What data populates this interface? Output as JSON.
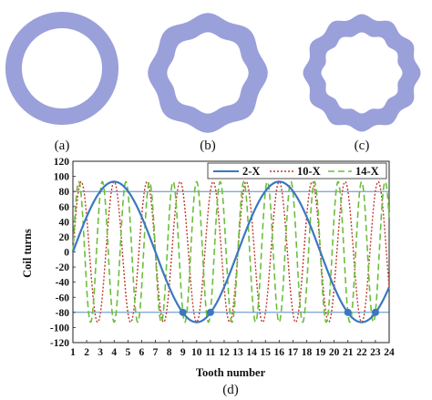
{
  "panels": {
    "ring_color": "#9aa0da",
    "labels": [
      "(a)",
      "(b)",
      "(c)"
    ],
    "lobes": [
      0,
      8,
      12
    ]
  },
  "chart_label": "(d)",
  "chart_data": {
    "type": "line",
    "xlabel": "Tooth number",
    "ylabel": "Coil turns",
    "xlim": [
      1,
      24
    ],
    "ylim": [
      -120,
      120
    ],
    "x_ticks": [
      1,
      2,
      3,
      4,
      5,
      6,
      7,
      8,
      9,
      10,
      11,
      12,
      13,
      14,
      15,
      16,
      17,
      18,
      19,
      20,
      21,
      22,
      23,
      24
    ],
    "y_ticks": [
      120,
      100,
      80,
      60,
      40,
      20,
      0,
      -20,
      -40,
      -60,
      -80,
      -100,
      -120
    ],
    "amplitude": 93,
    "reference_lines": [
      80,
      -80
    ],
    "legend_position": "top-right",
    "series": [
      {
        "name": "2-X",
        "color": "#3a78c0",
        "dash": "solid",
        "period_teeth": 12,
        "phase_tooth": 1,
        "amplitude": 93
      },
      {
        "name": "10-X",
        "color": "#c0392b",
        "dash": "dotted",
        "period_teeth": 2.4,
        "phase_tooth": 1,
        "amplitude": 93
      },
      {
        "name": "14-X",
        "color": "#6bbf3a",
        "dash": "dashed",
        "period_teeth": 1.714,
        "phase_tooth": 1,
        "amplitude": 93
      }
    ],
    "marked_points": [
      [
        9,
        -80
      ],
      [
        11,
        -80
      ],
      [
        21,
        -80
      ],
      [
        23,
        -80
      ]
    ]
  }
}
